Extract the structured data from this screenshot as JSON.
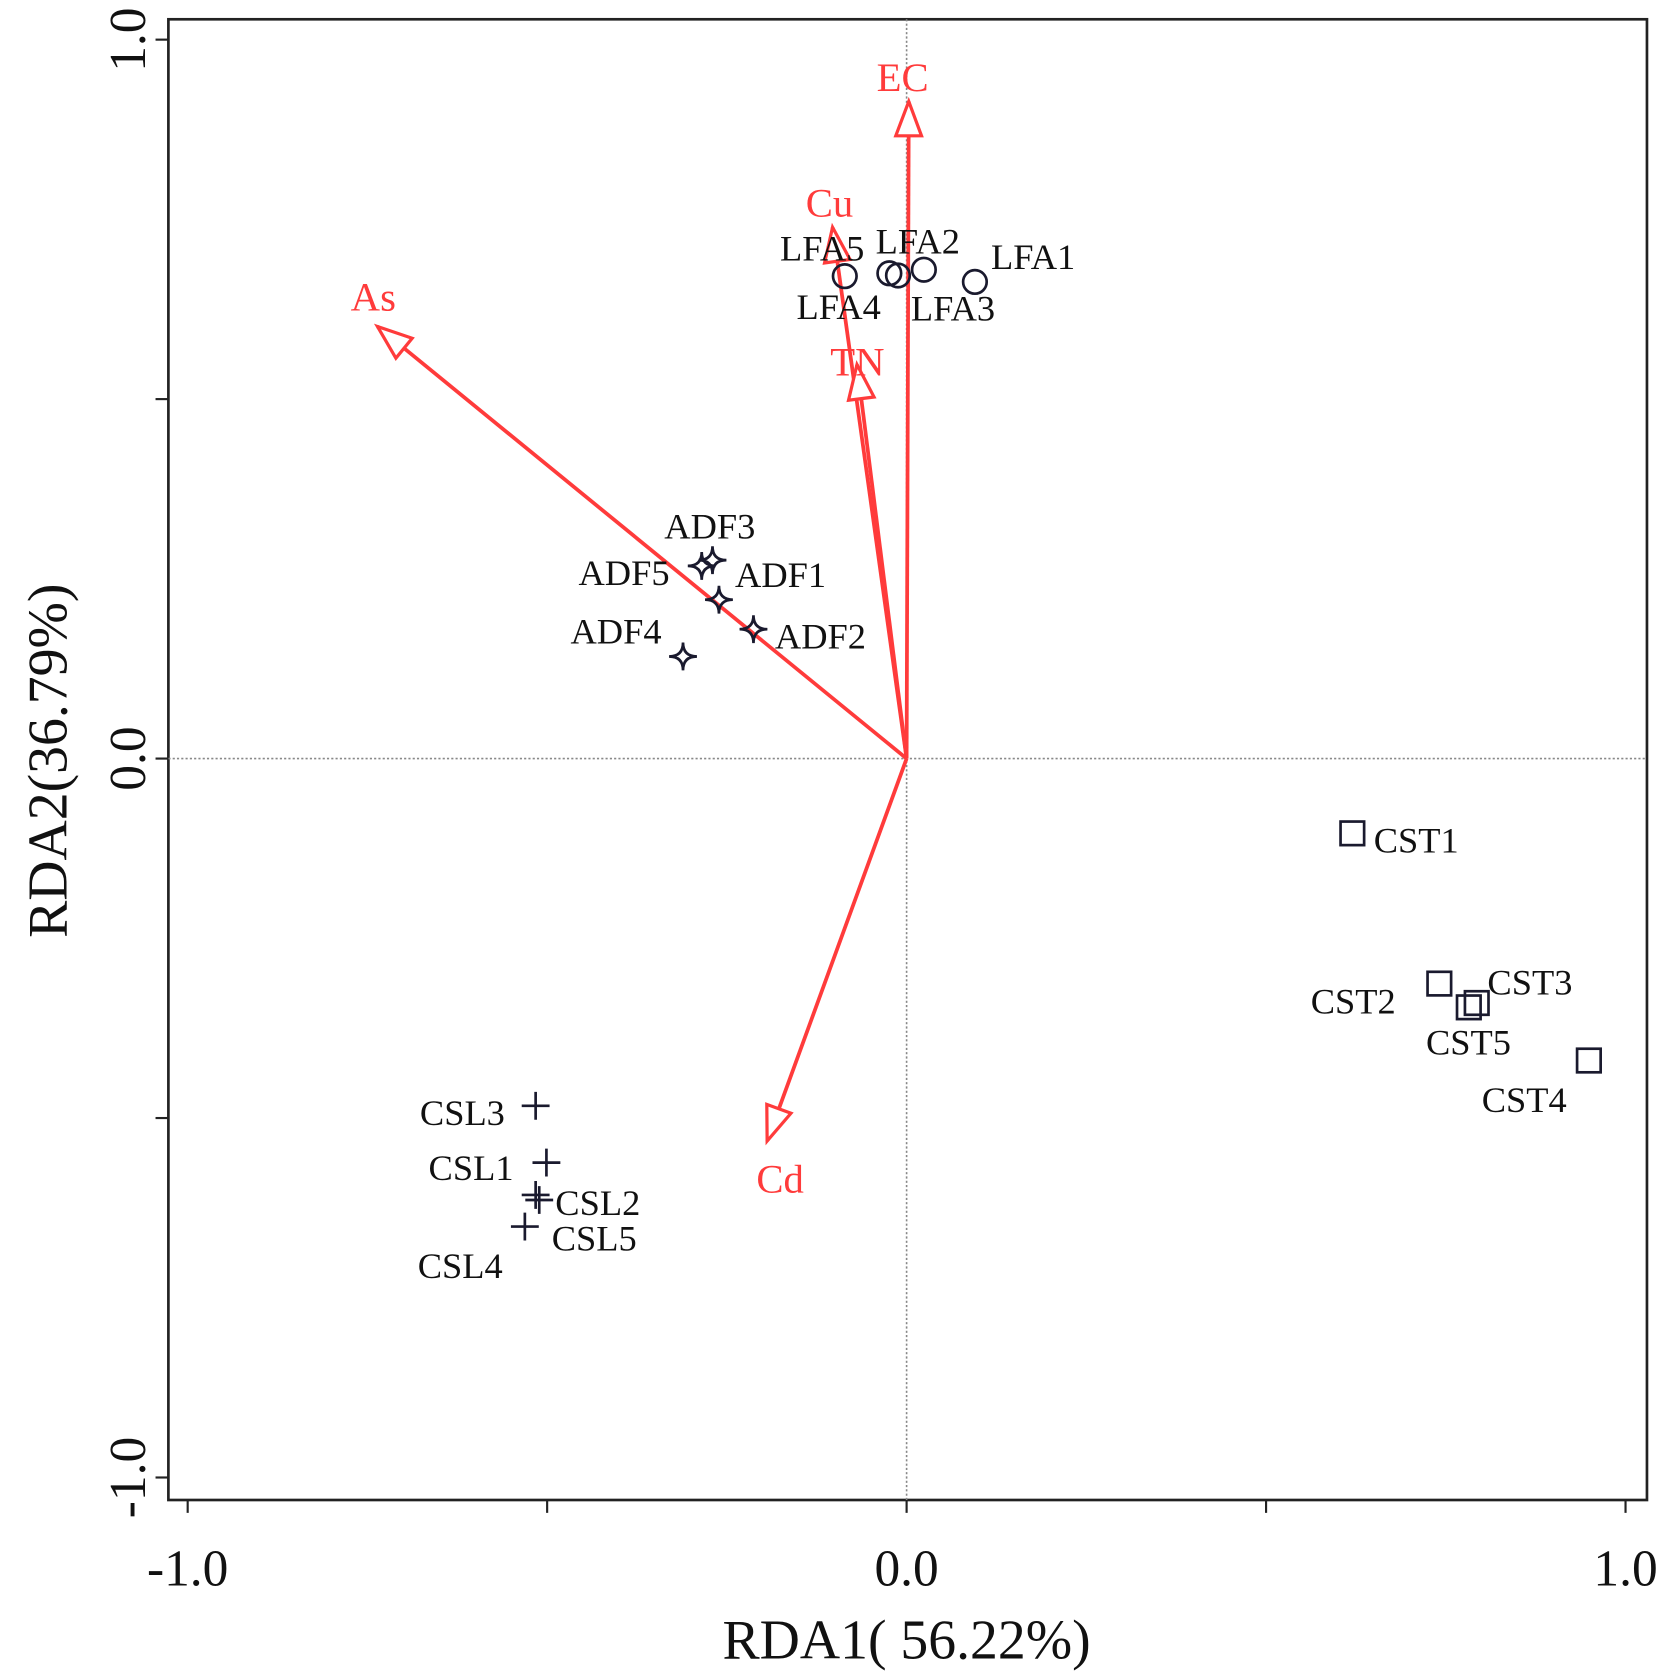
{
  "chart_data": {
    "type": "scatter",
    "subtype": "RDA biplot",
    "title": "",
    "xlabel": "RDA1( 56.22%)",
    "ylabel": "RDA2(36.79%)",
    "xlim": [
      -1.05,
      1.06
    ],
    "ylim": [
      -1.03,
      1.03
    ],
    "xticks": [
      -1.0,
      -0.5,
      0.0,
      0.5,
      1.0
    ],
    "xtick_labels": [
      "-1.0",
      "",
      "0.0",
      "",
      "1.0"
    ],
    "yticks": [
      -1.0,
      -0.5,
      0.0,
      0.5,
      1.0
    ],
    "ytick_labels": [
      "-1.0",
      "",
      "0.0",
      "",
      "1.0"
    ],
    "grid": false,
    "zero_lines": true,
    "arrow_color": "#ff3b3b",
    "point_color": "#1a1a2e",
    "arrows": [
      {
        "name": "EC",
        "x": 0.003,
        "y": 0.914
      },
      {
        "name": "Cu",
        "x": -0.103,
        "y": 0.739
      },
      {
        "name": "TN",
        "x": -0.069,
        "y": 0.548
      },
      {
        "name": "As",
        "x": -0.736,
        "y": 0.601
      },
      {
        "name": "Cd",
        "x": -0.194,
        "y": -0.532
      }
    ],
    "series": [
      {
        "name": "LFA",
        "marker": "circle",
        "points": [
          {
            "label": "LFA1",
            "x": 0.095,
            "y": 0.663
          },
          {
            "label": "LFA2",
            "x": 0.024,
            "y": 0.68
          },
          {
            "label": "LFA3",
            "x": -0.012,
            "y": 0.672
          },
          {
            "label": "LFA4",
            "x": -0.086,
            "y": 0.671
          },
          {
            "label": "LFA5",
            "x": -0.024,
            "y": 0.675
          }
        ]
      },
      {
        "name": "ADF",
        "marker": "star4",
        "points": [
          {
            "label": "ADF1",
            "x": -0.261,
            "y": 0.221
          },
          {
            "label": "ADF2",
            "x": -0.213,
            "y": 0.18
          },
          {
            "label": "ADF3",
            "x": -0.27,
            "y": 0.276
          },
          {
            "label": "ADF4",
            "x": -0.311,
            "y": 0.142
          },
          {
            "label": "ADF5",
            "x": -0.285,
            "y": 0.268
          }
        ]
      },
      {
        "name": "CSL",
        "marker": "plus",
        "points": [
          {
            "label": "CSL1",
            "x": -0.501,
            "y": -0.562
          },
          {
            "label": "CSL2",
            "x": -0.511,
            "y": -0.614
          },
          {
            "label": "CSL3",
            "x": -0.516,
            "y": -0.483
          },
          {
            "label": "CSL4",
            "x": -0.531,
            "y": -0.651
          },
          {
            "label": "CSL5",
            "x": -0.516,
            "y": -0.607
          }
        ]
      },
      {
        "name": "CST",
        "marker": "square",
        "points": [
          {
            "label": "CST1",
            "x": 0.62,
            "y": -0.104
          },
          {
            "label": "CST2",
            "x": 0.741,
            "y": -0.313
          },
          {
            "label": "CST3",
            "x": 0.793,
            "y": -0.34
          },
          {
            "label": "CST4",
            "x": 0.949,
            "y": -0.42
          },
          {
            "label": "CST5",
            "x": 0.782,
            "y": -0.346
          }
        ]
      }
    ]
  }
}
